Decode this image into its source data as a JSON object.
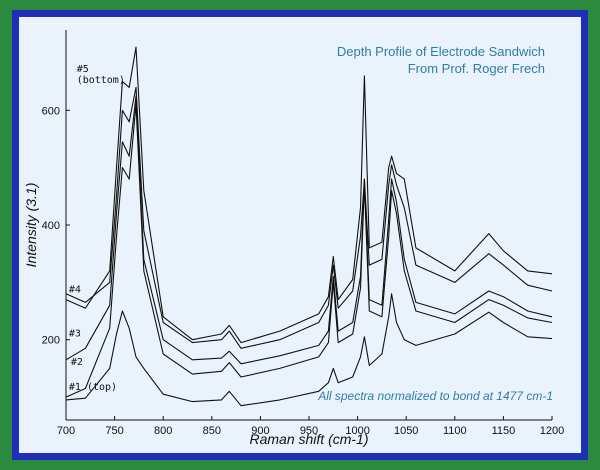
{
  "chart_data": {
    "type": "line",
    "title": [
      "Depth Profile of Electrode Sandwich",
      "From Prof. Roger Frech"
    ],
    "annotation": "All spectra normalized to bond at 1477 cm-1",
    "xlabel": "Raman shift (cm-1)",
    "ylabel": "Intensity (3.1)",
    "xlim": [
      700,
      1200
    ],
    "ylim": [
      60,
      740
    ],
    "xticks": [
      700,
      750,
      800,
      850,
      900,
      950,
      1000,
      1050,
      1100,
      1150,
      1200
    ],
    "yticks": [
      200,
      400,
      600
    ],
    "grid": false,
    "trace_labels": [
      {
        "text": "#5",
        "x": 711,
        "y": 667
      },
      {
        "text": "(bottom)",
        "x": 711,
        "y": 648
      },
      {
        "text": "#4",
        "x": 703,
        "y": 282
      },
      {
        "text": "#3",
        "x": 703,
        "y": 206
      },
      {
        "text": "#2",
        "x": 705,
        "y": 156
      },
      {
        "text": "#1 (top)",
        "x": 703,
        "y": 112
      }
    ],
    "series": [
      {
        "name": "#1 (top)",
        "x": [
          700,
          720,
          745,
          752,
          758,
          765,
          772,
          780,
          800,
          830,
          860,
          868,
          880,
          920,
          960,
          970,
          975,
          980,
          995,
          1003,
          1007,
          1012,
          1025,
          1032,
          1035,
          1040,
          1048,
          1060,
          1100,
          1135,
          1150,
          1175,
          1200
        ],
        "y": [
          95,
          98,
          150,
          210,
          250,
          220,
          170,
          150,
          105,
          92,
          95,
          110,
          85,
          95,
          110,
          125,
          150,
          125,
          135,
          170,
          205,
          155,
          175,
          240,
          280,
          230,
          200,
          190,
          210,
          248,
          230,
          205,
          202
        ]
      },
      {
        "name": "#2",
        "x": [
          700,
          720,
          745,
          752,
          758,
          765,
          772,
          780,
          800,
          830,
          860,
          868,
          880,
          920,
          960,
          970,
          975,
          980,
          995,
          1003,
          1007,
          1012,
          1025,
          1032,
          1035,
          1040,
          1048,
          1060,
          1100,
          1135,
          1150,
          1175,
          1200
        ],
        "y": [
          100,
          115,
          220,
          380,
          500,
          480,
          610,
          320,
          175,
          140,
          145,
          160,
          135,
          150,
          170,
          195,
          300,
          195,
          210,
          290,
          470,
          250,
          240,
          380,
          460,
          420,
          320,
          250,
          230,
          270,
          260,
          238,
          230
        ]
      },
      {
        "name": "#3",
        "x": [
          700,
          720,
          745,
          752,
          758,
          765,
          772,
          780,
          800,
          830,
          860,
          868,
          880,
          920,
          960,
          970,
          975,
          980,
          995,
          1003,
          1007,
          1012,
          1025,
          1032,
          1035,
          1040,
          1048,
          1060,
          1100,
          1135,
          1150,
          1175,
          1200
        ],
        "y": [
          165,
          185,
          260,
          420,
          545,
          520,
          625,
          340,
          200,
          165,
          168,
          180,
          158,
          172,
          190,
          215,
          310,
          215,
          230,
          310,
          480,
          270,
          260,
          410,
          480,
          440,
          340,
          265,
          245,
          285,
          275,
          250,
          240
        ]
      },
      {
        "name": "#4",
        "x": [
          700,
          720,
          745,
          752,
          758,
          765,
          772,
          780,
          800,
          830,
          860,
          868,
          880,
          920,
          960,
          970,
          975,
          980,
          995,
          1003,
          1007,
          1012,
          1025,
          1032,
          1035,
          1040,
          1048,
          1060,
          1100,
          1135,
          1150,
          1175,
          1200
        ],
        "y": [
          280,
          265,
          300,
          450,
          600,
          580,
          640,
          390,
          230,
          195,
          200,
          215,
          185,
          200,
          230,
          260,
          330,
          255,
          285,
          380,
          480,
          330,
          340,
          470,
          505,
          470,
          430,
          330,
          300,
          350,
          330,
          295,
          285
        ]
      },
      {
        "name": "#5 (bottom)",
        "x": [
          700,
          720,
          745,
          752,
          758,
          765,
          772,
          780,
          800,
          830,
          860,
          868,
          880,
          920,
          960,
          970,
          975,
          980,
          995,
          1003,
          1007,
          1012,
          1025,
          1032,
          1035,
          1040,
          1048,
          1060,
          1100,
          1135,
          1150,
          1175,
          1200
        ],
        "y": [
          270,
          255,
          320,
          500,
          650,
          640,
          710,
          460,
          240,
          200,
          210,
          225,
          195,
          215,
          245,
          275,
          345,
          270,
          305,
          430,
          660,
          360,
          370,
          500,
          520,
          490,
          480,
          360,
          320,
          385,
          355,
          320,
          315
        ]
      }
    ]
  }
}
